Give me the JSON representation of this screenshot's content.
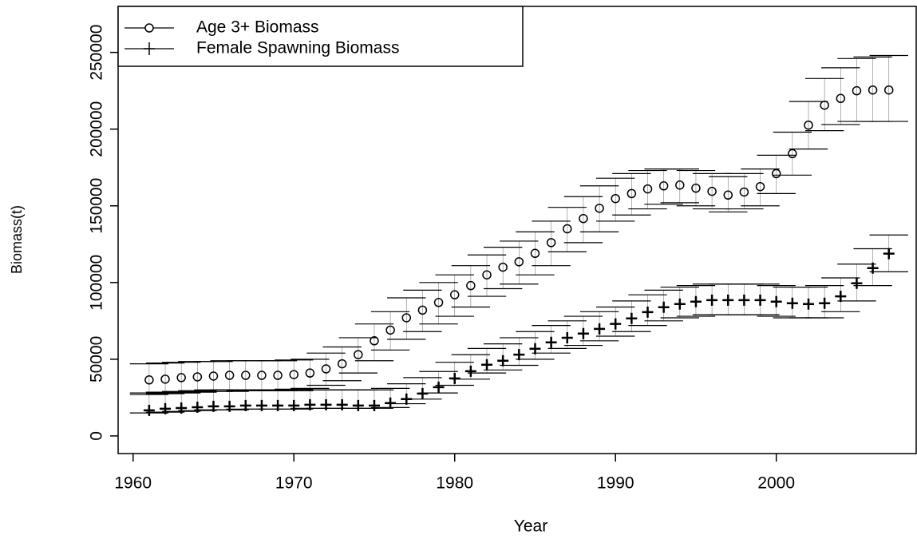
{
  "chart_data": {
    "type": "scatter",
    "xlabel": "Year",
    "ylabel": "Biomass(t)",
    "x": [
      1961,
      1962,
      1963,
      1964,
      1965,
      1966,
      1967,
      1968,
      1969,
      1970,
      1971,
      1972,
      1973,
      1974,
      1975,
      1976,
      1977,
      1978,
      1979,
      1980,
      1981,
      1982,
      1983,
      1984,
      1985,
      1986,
      1987,
      1988,
      1989,
      1990,
      1991,
      1992,
      1993,
      1994,
      1995,
      1996,
      1997,
      1998,
      1999,
      2000,
      2001,
      2002,
      2003,
      2004,
      2005,
      2006,
      2007
    ],
    "series": [
      {
        "name": "Age 3+ Biomass",
        "marker": "circle",
        "color": "#000000",
        "values": [
          36500,
          37000,
          38000,
          38500,
          39000,
          39500,
          39500,
          39500,
          39500,
          40000,
          41000,
          43700,
          47000,
          53000,
          62000,
          69000,
          77000,
          82000,
          87000,
          92000,
          98000,
          105000,
          110000,
          113500,
          119000,
          126000,
          135000,
          141700,
          148400,
          154700,
          158000,
          161000,
          163000,
          163500,
          161500,
          159400,
          157000,
          159000,
          162500,
          171000,
          184000,
          202600,
          215600,
          220000,
          225000,
          225500,
          225500
        ],
        "upper": [
          47000,
          47500,
          48000,
          48500,
          48500,
          49000,
          49000,
          49000,
          49000,
          49500,
          50000,
          54000,
          58000,
          64000,
          73000,
          81000,
          90000,
          95000,
          100000,
          105000,
          111000,
          118000,
          123000,
          127000,
          133000,
          140000,
          149000,
          156000,
          163000,
          168000,
          171000,
          173000,
          174000,
          174000,
          173000,
          171000,
          169000,
          171000,
          174000,
          183000,
          198000,
          218000,
          233000,
          240000,
          246000,
          247000,
          248000
        ],
        "lower": [
          28000,
          28500,
          29000,
          29500,
          30000,
          30000,
          30000,
          30000,
          30000,
          30500,
          31000,
          33000,
          36000,
          41000,
          49000,
          56000,
          63000,
          68000,
          73000,
          78000,
          84000,
          91000,
          96000,
          99000,
          105000,
          111000,
          120000,
          126000,
          133000,
          140000,
          144000,
          148000,
          151000,
          152000,
          150000,
          148000,
          146000,
          148000,
          150000,
          158000,
          170000,
          187000,
          199000,
          203000,
          205000,
          205000,
          205000
        ]
      },
      {
        "name": "Female Spawning Biomass",
        "marker": "plus",
        "color": "#000000",
        "values": [
          16700,
          17700,
          18200,
          18700,
          19300,
          19300,
          19800,
          19800,
          19800,
          19800,
          20300,
          20300,
          20300,
          19800,
          19800,
          21400,
          24000,
          27600,
          31800,
          37500,
          42200,
          46400,
          49000,
          53000,
          56800,
          61000,
          64000,
          66700,
          69800,
          73000,
          76600,
          80700,
          83900,
          86000,
          87500,
          88500,
          88500,
          88500,
          88500,
          87500,
          86500,
          86000,
          86500,
          91000,
          99500,
          109400,
          118800
        ],
        "upper": [
          27000,
          27500,
          28000,
          28500,
          29000,
          29000,
          29500,
          29500,
          29500,
          29500,
          30000,
          30000,
          30000,
          30000,
          30000,
          31000,
          34000,
          38000,
          42000,
          48000,
          53000,
          57000,
          60000,
          64000,
          68000,
          72000,
          75000,
          78000,
          81000,
          84000,
          88000,
          92000,
          95000,
          97000,
          98000,
          99000,
          99000,
          99000,
          99000,
          98000,
          97000,
          97000,
          98000,
          103000,
          112000,
          122000,
          131000
        ],
        "lower": [
          15000,
          15500,
          16000,
          16500,
          17000,
          17000,
          17500,
          17500,
          17500,
          17500,
          18000,
          18000,
          18000,
          18000,
          18000,
          18500,
          21000,
          24000,
          28000,
          33000,
          37000,
          41000,
          43000,
          46000,
          50000,
          54000,
          57000,
          59000,
          62000,
          65000,
          68000,
          72000,
          75000,
          77000,
          78000,
          79000,
          79000,
          79000,
          79000,
          78000,
          77000,
          77000,
          77000,
          81000,
          88000,
          98000,
          107000
        ]
      }
    ],
    "xlim": [
      1959.07,
      2008.7
    ],
    "xticks": [
      1960,
      1970,
      1980,
      1990,
      2000
    ],
    "ylim": [
      -11500,
      280000
    ],
    "yticks": [
      0,
      50000,
      100000,
      150000,
      200000,
      250000
    ],
    "legend": "top-left"
  }
}
